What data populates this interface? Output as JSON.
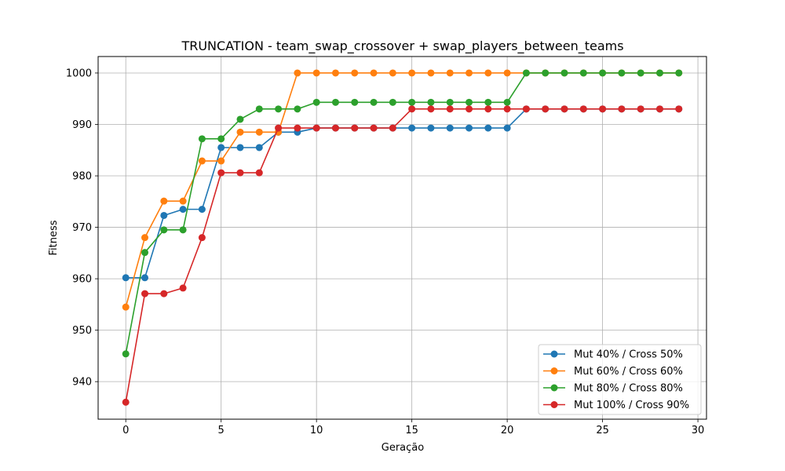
{
  "chart_data": {
    "type": "line",
    "title": "TRUNCATION - team_swap_crossover + swap_players_between_teams",
    "xlabel": "Geração",
    "ylabel": "Fitness",
    "xlim": [
      -1.45,
      30.45
    ],
    "ylim": [
      932.7,
      1003.2
    ],
    "xticks": [
      0,
      5,
      10,
      15,
      20,
      25,
      30
    ],
    "yticks": [
      940,
      950,
      960,
      970,
      980,
      990,
      1000
    ],
    "grid": true,
    "legend_position": "lower-right",
    "x": [
      0,
      1,
      2,
      3,
      4,
      5,
      6,
      7,
      8,
      9,
      10,
      11,
      12,
      13,
      14,
      15,
      16,
      17,
      18,
      19,
      20,
      21,
      22,
      23,
      24,
      25,
      26,
      27,
      28,
      29
    ],
    "series": [
      {
        "name": "Mut 40% / Cross 50%",
        "color": "#1f77b4",
        "values": [
          960.2,
          960.2,
          972.3,
          973.5,
          973.5,
          985.5,
          985.5,
          985.5,
          988.5,
          988.5,
          989.3,
          989.3,
          989.3,
          989.3,
          989.3,
          989.3,
          989.3,
          989.3,
          989.3,
          989.3,
          989.3,
          993.0,
          993.0,
          993.0,
          993.0,
          993.0,
          993.0,
          993.0,
          993.0,
          993.0
        ]
      },
      {
        "name": "Mut 60% / Cross 60%",
        "color": "#ff7f0e",
        "values": [
          954.5,
          968.0,
          975.1,
          975.1,
          982.9,
          982.9,
          988.5,
          988.5,
          988.5,
          1000.0,
          1000.0,
          1000.0,
          1000.0,
          1000.0,
          1000.0,
          1000.0,
          1000.0,
          1000.0,
          1000.0,
          1000.0,
          1000.0,
          1000.0,
          1000.0,
          1000.0,
          1000.0,
          1000.0,
          1000.0,
          1000.0,
          1000.0,
          1000.0
        ]
      },
      {
        "name": "Mut 80% / Cross 80%",
        "color": "#2ca02c",
        "values": [
          945.4,
          965.1,
          969.5,
          969.5,
          987.2,
          987.2,
          991.0,
          993.0,
          993.0,
          993.0,
          994.3,
          994.3,
          994.3,
          994.3,
          994.3,
          994.3,
          994.3,
          994.3,
          994.3,
          994.3,
          994.3,
          1000.0,
          1000.0,
          1000.0,
          1000.0,
          1000.0,
          1000.0,
          1000.0,
          1000.0,
          1000.0
        ]
      },
      {
        "name": "Mut 100% / Cross 90%",
        "color": "#d62728",
        "values": [
          936.0,
          957.1,
          957.1,
          958.2,
          968.0,
          980.6,
          980.6,
          980.6,
          989.3,
          989.3,
          989.3,
          989.3,
          989.3,
          989.3,
          989.3,
          993.0,
          993.0,
          993.0,
          993.0,
          993.0,
          993.0,
          993.0,
          993.0,
          993.0,
          993.0,
          993.0,
          993.0,
          993.0,
          993.0,
          993.0
        ]
      }
    ]
  }
}
